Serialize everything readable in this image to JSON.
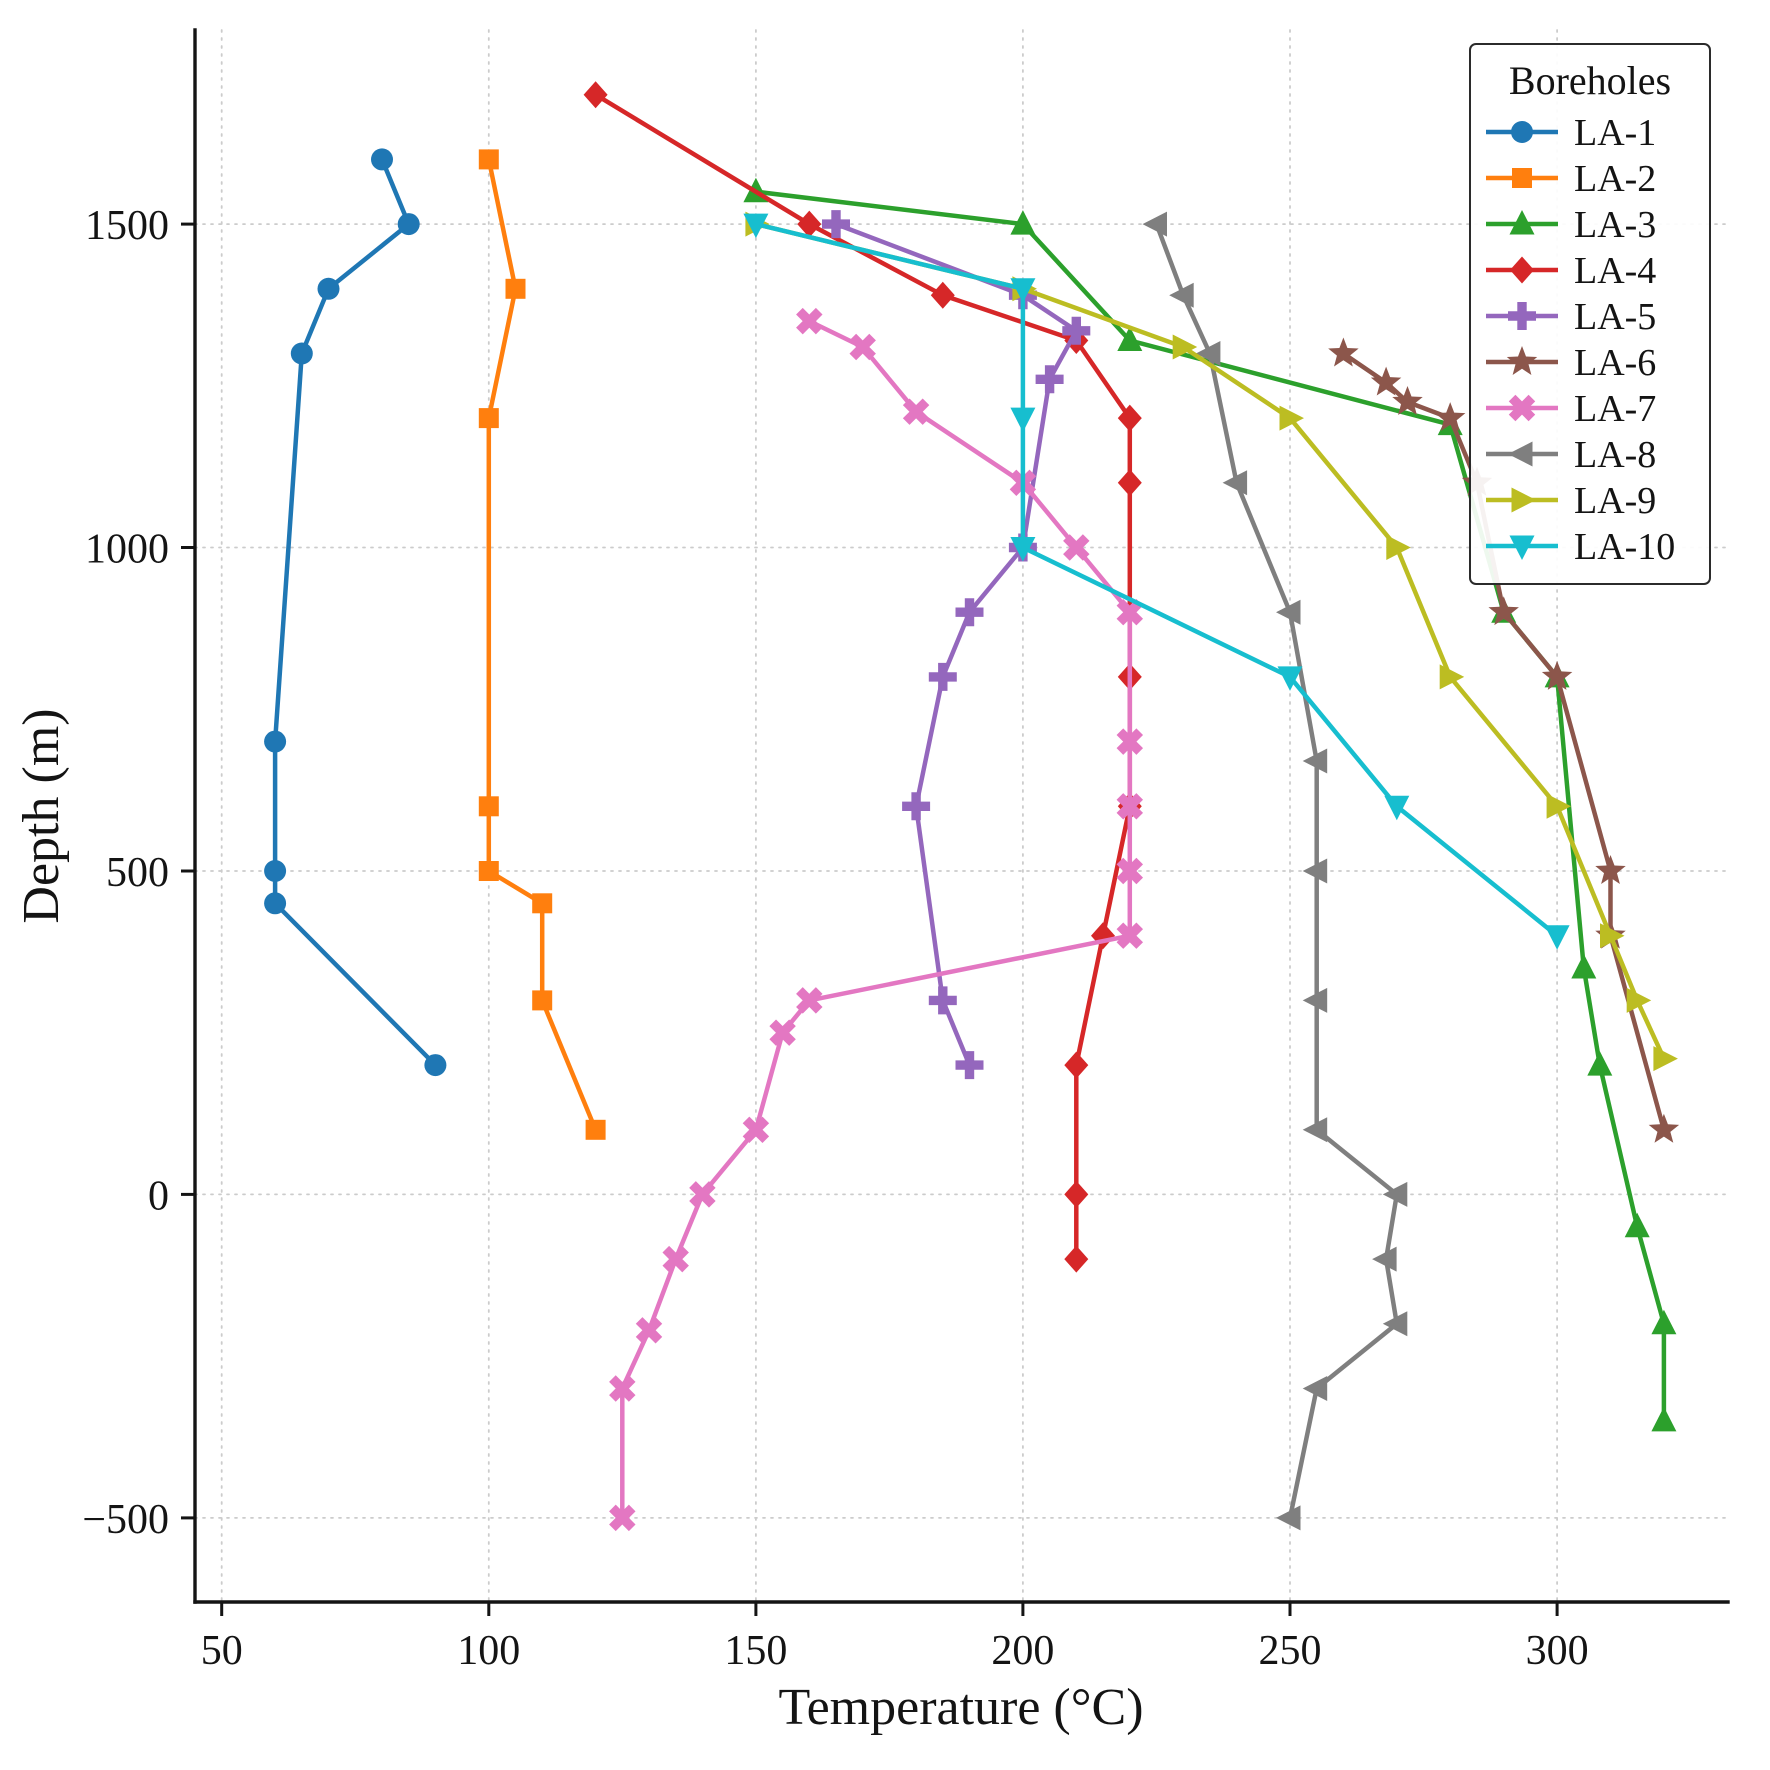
{
  "figure": {
    "background": "#ffffff"
  },
  "chart_data": {
    "type": "line",
    "title": "",
    "xlabel": "Temperature (°C)",
    "ylabel": "Depth (m)",
    "legend_title": "Boreholes",
    "legend_position": "upper right",
    "grid": true,
    "xlim": [
      45,
      332
    ],
    "ylim": [
      -630,
      1800
    ],
    "xticks": [
      50,
      100,
      150,
      200,
      250,
      300
    ],
    "yticks": [
      -500,
      0,
      500,
      1000,
      1500
    ],
    "series": [
      {
        "name": "LA-1",
        "color": "#1f77b4",
        "marker": "circle",
        "points": [
          [
            80,
            1600
          ],
          [
            85,
            1500
          ],
          [
            70,
            1400
          ],
          [
            65,
            1300
          ],
          [
            60,
            700
          ],
          [
            60,
            500
          ],
          [
            60,
            450
          ],
          [
            90,
            200
          ]
        ]
      },
      {
        "name": "LA-2",
        "color": "#ff7f0e",
        "marker": "square",
        "points": [
          [
            100,
            1600
          ],
          [
            105,
            1400
          ],
          [
            100,
            1200
          ],
          [
            100,
            600
          ],
          [
            100,
            500
          ],
          [
            110,
            450
          ],
          [
            110,
            300
          ],
          [
            120,
            100
          ]
        ]
      },
      {
        "name": "LA-3",
        "color": "#2ca02c",
        "marker": "triangle-up",
        "points": [
          [
            150,
            1550
          ],
          [
            200,
            1500
          ],
          [
            220,
            1320
          ],
          [
            280,
            1190
          ],
          [
            290,
            900
          ],
          [
            300,
            800
          ],
          [
            305,
            350
          ],
          [
            308,
            200
          ],
          [
            315,
            -50
          ],
          [
            320,
            -200
          ],
          [
            320,
            -350
          ]
        ]
      },
      {
        "name": "LA-4",
        "color": "#d62728",
        "marker": "diamond",
        "points": [
          [
            120,
            1700
          ],
          [
            160,
            1500
          ],
          [
            185,
            1390
          ],
          [
            210,
            1320
          ],
          [
            220,
            1200
          ],
          [
            220,
            1100
          ],
          [
            220,
            800
          ],
          [
            220,
            600
          ],
          [
            215,
            400
          ],
          [
            210,
            200
          ],
          [
            210,
            0
          ],
          [
            210,
            -100
          ]
        ]
      },
      {
        "name": "LA-5",
        "color": "#9467bd",
        "marker": "plus",
        "points": [
          [
            165,
            1500
          ],
          [
            200,
            1390
          ],
          [
            210,
            1335
          ],
          [
            205,
            1260
          ],
          [
            200,
            1000
          ],
          [
            190,
            900
          ],
          [
            185,
            800
          ],
          [
            180,
            600
          ],
          [
            185,
            300
          ],
          [
            190,
            200
          ]
        ]
      },
      {
        "name": "LA-6",
        "color": "#8c564b",
        "marker": "star",
        "points": [
          [
            260,
            1300
          ],
          [
            268,
            1255
          ],
          [
            272,
            1225
          ],
          [
            280,
            1200
          ],
          [
            285,
            1100
          ],
          [
            290,
            900
          ],
          [
            300,
            800
          ],
          [
            310,
            500
          ],
          [
            310,
            400
          ],
          [
            320,
            100
          ]
        ]
      },
      {
        "name": "LA-7",
        "color": "#e377c2",
        "marker": "x",
        "points": [
          [
            160,
            1350
          ],
          [
            170,
            1310
          ],
          [
            180,
            1210
          ],
          [
            200,
            1100
          ],
          [
            210,
            1000
          ],
          [
            220,
            900
          ],
          [
            220,
            700
          ],
          [
            220,
            600
          ],
          [
            220,
            500
          ],
          [
            220,
            400
          ],
          [
            160,
            300
          ],
          [
            155,
            250
          ],
          [
            150,
            100
          ],
          [
            140,
            0
          ],
          [
            135,
            -100
          ],
          [
            130,
            -210
          ],
          [
            125,
            -300
          ],
          [
            125,
            -500
          ]
        ]
      },
      {
        "name": "LA-8",
        "color": "#7f7f7f",
        "marker": "triangle-left",
        "points": [
          [
            225,
            1500
          ],
          [
            230,
            1390
          ],
          [
            235,
            1300
          ],
          [
            240,
            1100
          ],
          [
            250,
            900
          ],
          [
            255,
            670
          ],
          [
            255,
            500
          ],
          [
            255,
            300
          ],
          [
            255,
            100
          ],
          [
            270,
            0
          ],
          [
            268,
            -100
          ],
          [
            270,
            -200
          ],
          [
            255,
            -300
          ],
          [
            250,
            -500
          ]
        ]
      },
      {
        "name": "LA-9",
        "color": "#bcbd22",
        "marker": "triangle-right",
        "points": [
          [
            150,
            1500
          ],
          [
            200,
            1400
          ],
          [
            230,
            1310
          ],
          [
            250,
            1200
          ],
          [
            270,
            1000
          ],
          [
            280,
            800
          ],
          [
            300,
            600
          ],
          [
            310,
            400
          ],
          [
            315,
            300
          ],
          [
            320,
            210
          ]
        ]
      },
      {
        "name": "LA-10",
        "color": "#17becf",
        "marker": "triangle-down",
        "points": [
          [
            150,
            1500
          ],
          [
            200,
            1400
          ],
          [
            200,
            1200
          ],
          [
            200,
            1000
          ],
          [
            250,
            800
          ],
          [
            270,
            600
          ],
          [
            300,
            400
          ]
        ]
      }
    ]
  }
}
